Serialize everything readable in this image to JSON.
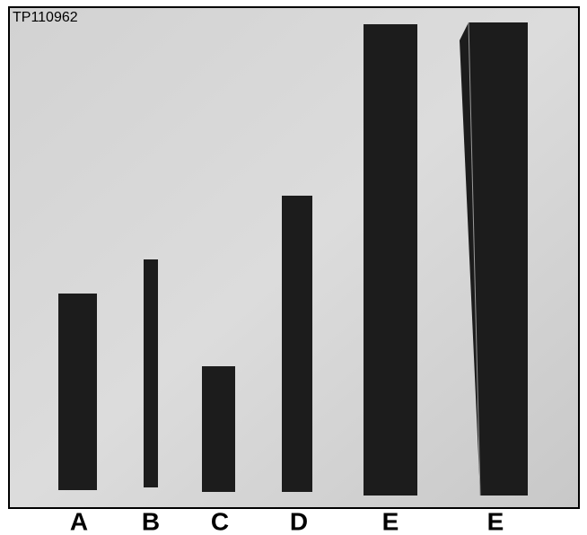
{
  "image_id": "TP110962",
  "labels": [
    "A",
    "B",
    "C",
    "D",
    "E",
    "E"
  ]
}
